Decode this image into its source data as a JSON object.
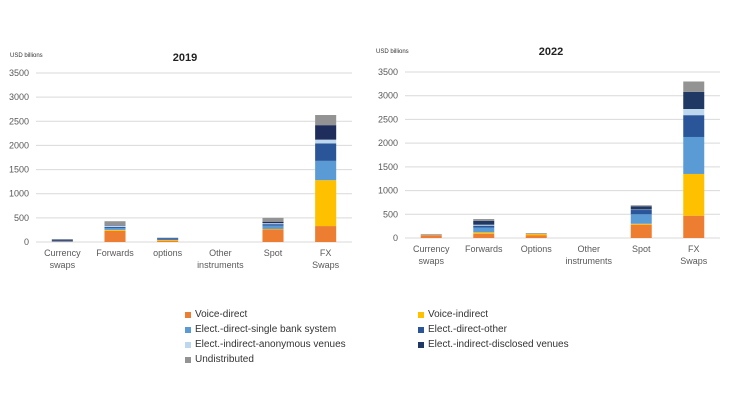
{
  "chart_data": [
    {
      "type": "bar",
      "stacked": true,
      "title": "2019",
      "ylabel": "USD billions",
      "xlabel": "",
      "ylim": [
        0,
        3500
      ],
      "yticks": [
        0,
        500,
        1000,
        1500,
        2000,
        2500,
        3000,
        3500
      ],
      "grid": true,
      "legend": "bottom",
      "categories": [
        "Currency swaps",
        "Forwards",
        "options",
        "Other instruments",
        "Spot",
        "FX Swaps"
      ],
      "series": [
        {
          "name": "Voice-direct",
          "color": "#ED7D31",
          "values": [
            10,
            230,
            20,
            0,
            260,
            330
          ]
        },
        {
          "name": "Voice-indirect",
          "color": "#FFC000",
          "values": [
            0,
            20,
            20,
            0,
            10,
            950
          ]
        },
        {
          "name": "Elect.-direct-single bank system",
          "color": "#5B9BD5",
          "values": [
            10,
            40,
            10,
            0,
            70,
            400
          ]
        },
        {
          "name": "Elect.-direct-other",
          "color": "#2A5699",
          "values": [
            30,
            20,
            30,
            0,
            30,
            360
          ]
        },
        {
          "name": "Elect.-indirect-anonymous venues",
          "color": "#BDD7EE",
          "values": [
            0,
            30,
            0,
            0,
            20,
            80
          ]
        },
        {
          "name": "Elect.-indirect-disclosed venues",
          "color": "#1F2D5C",
          "values": [
            0,
            10,
            0,
            0,
            30,
            300
          ]
        },
        {
          "name": "Undistributed",
          "color": "#939393",
          "values": [
            10,
            80,
            10,
            0,
            80,
            210
          ]
        }
      ]
    },
    {
      "type": "bar",
      "stacked": true,
      "title": "2022",
      "ylabel": "USD billions",
      "xlabel": "",
      "ylim": [
        0,
        3500
      ],
      "yticks": [
        0,
        500,
        1000,
        1500,
        2000,
        2500,
        3000,
        3500
      ],
      "grid": true,
      "legend": "bottom",
      "categories": [
        "Currency swaps",
        "Forwards",
        "Options",
        "Other instruments",
        "Spot",
        "FX Swaps"
      ],
      "series": [
        {
          "name": "Voice-direct",
          "color": "#ED7D31",
          "values": [
            60,
            90,
            60,
            0,
            280,
            470
          ]
        },
        {
          "name": "Voice-indirect",
          "color": "#FFC000",
          "values": [
            5,
            30,
            30,
            0,
            20,
            880
          ]
        },
        {
          "name": "Elect.-direct-single bank system",
          "color": "#5B9BD5",
          "values": [
            5,
            100,
            5,
            0,
            200,
            780
          ]
        },
        {
          "name": "Elect.-direct-other",
          "color": "#2A5699",
          "values": [
            5,
            40,
            0,
            0,
            90,
            460
          ]
        },
        {
          "name": "Elect.-indirect-anonymous venues",
          "color": "#BDD7EE",
          "values": [
            0,
            20,
            0,
            0,
            10,
            130
          ]
        },
        {
          "name": "Elect.-indirect-disclosed venues",
          "color": "#1F3864",
          "values": [
            0,
            80,
            0,
            0,
            70,
            360
          ]
        },
        {
          "name": "Undistributed",
          "color": "#939393",
          "values": [
            5,
            40,
            10,
            0,
            20,
            220
          ]
        }
      ]
    }
  ],
  "legend": [
    {
      "label": "Voice-direct",
      "color": "#ED7D31"
    },
    {
      "label": "Voice-indirect",
      "color": "#FFC000"
    },
    {
      "label": "Elect.-direct-single bank system",
      "color": "#5B9BD5"
    },
    {
      "label": "Elect.-direct-other",
      "color": "#2A5699"
    },
    {
      "label": "Elect.-indirect-anonymous venues",
      "color": "#BDD7EE"
    },
    {
      "label": "Elect.-indirect-disclosed venues",
      "color": "#1F3864"
    },
    {
      "label": "Undistributed",
      "color": "#939393"
    }
  ]
}
